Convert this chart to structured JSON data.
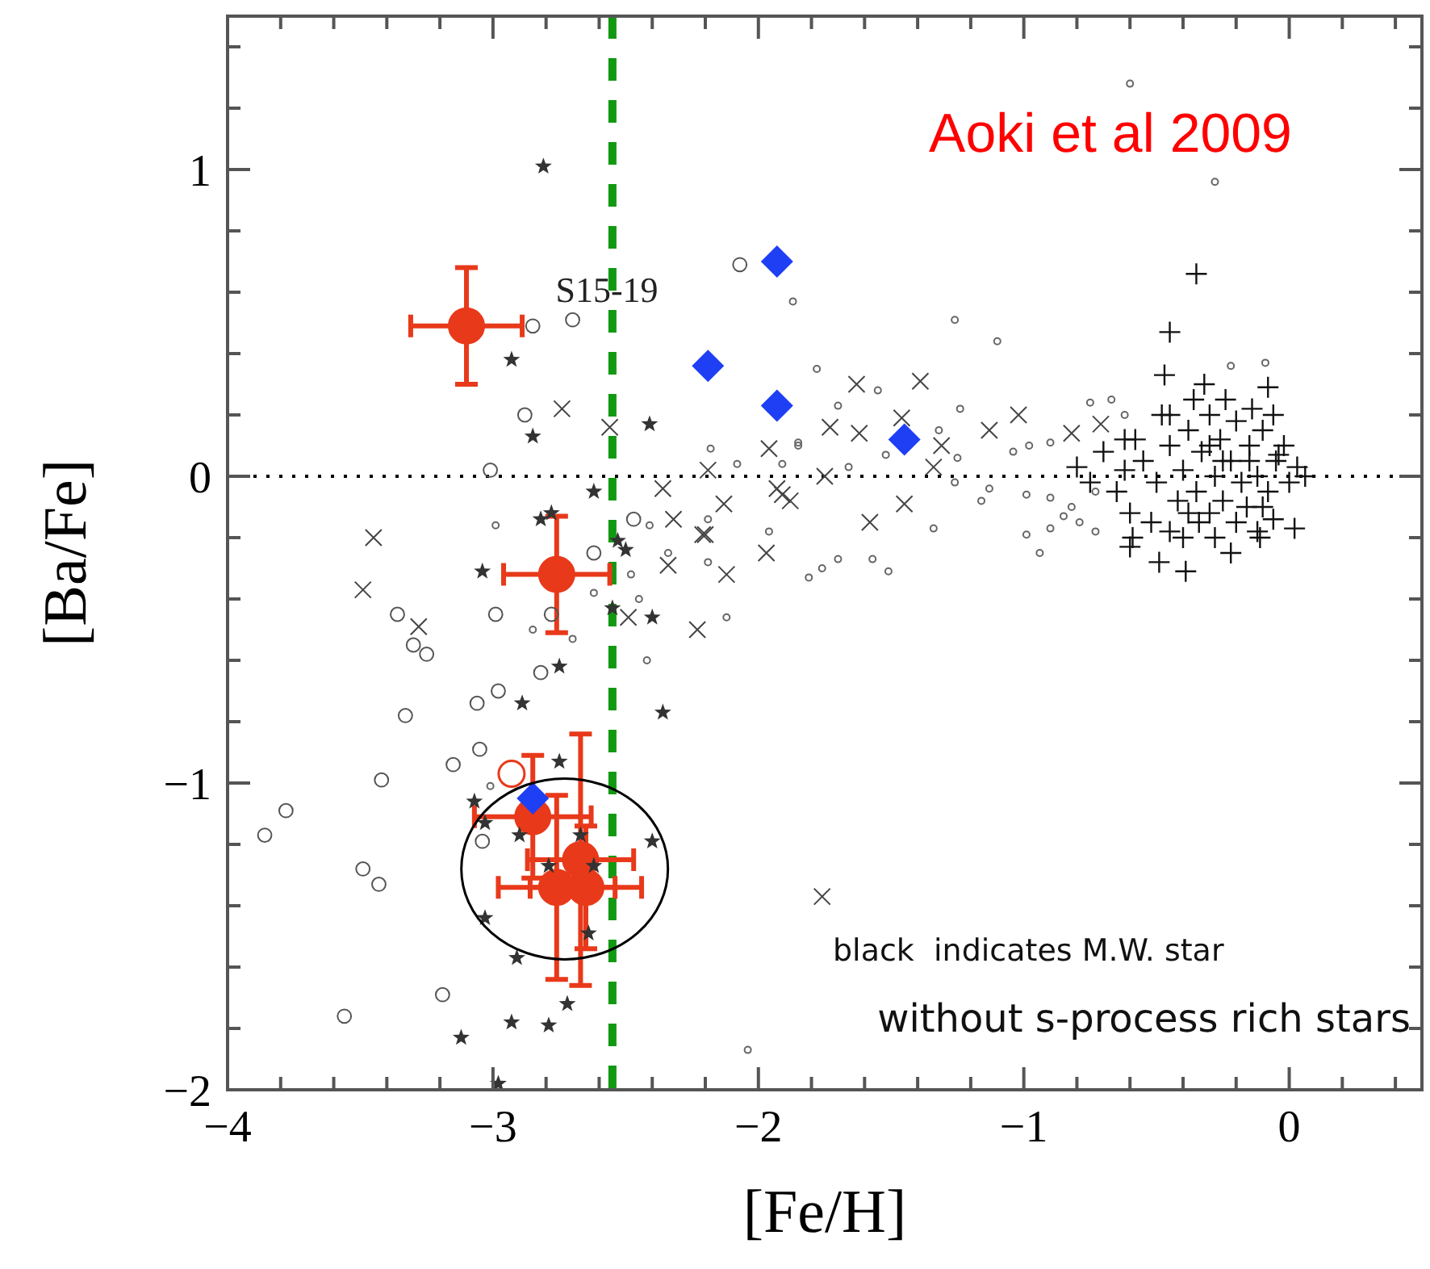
{
  "chart_data": {
    "type": "scatter",
    "xlabel": "[Fe/H]",
    "ylabel": "[Ba/Fe]",
    "xlim": [
      -4,
      0.5
    ],
    "ylim": [
      -2,
      1.5
    ],
    "xticks": [
      {
        "value": -4,
        "label": "−4"
      },
      {
        "value": -3.8,
        "label": null
      },
      {
        "value": -3.6,
        "label": null
      },
      {
        "value": -3.4,
        "label": null
      },
      {
        "value": -3.2,
        "label": null
      },
      {
        "value": -3,
        "label": "−3"
      },
      {
        "value": -2.8,
        "label": null
      },
      {
        "value": -2.6,
        "label": null
      },
      {
        "value": -2.4,
        "label": null
      },
      {
        "value": -2.2,
        "label": null
      },
      {
        "value": -2,
        "label": "−2"
      },
      {
        "value": -1.8,
        "label": null
      },
      {
        "value": -1.6,
        "label": null
      },
      {
        "value": -1.4,
        "label": null
      },
      {
        "value": -1.2,
        "label": null
      },
      {
        "value": -1,
        "label": "−1"
      },
      {
        "value": -0.8,
        "label": null
      },
      {
        "value": -0.6,
        "label": null
      },
      {
        "value": -0.4,
        "label": null
      },
      {
        "value": -0.2,
        "label": null
      },
      {
        "value": 0,
        "label": "0"
      },
      {
        "value": 0.2,
        "label": null
      },
      {
        "value": 0.4,
        "label": null
      }
    ],
    "yticks": [
      {
        "value": -2,
        "label": "−2"
      },
      {
        "value": -1.8,
        "label": null
      },
      {
        "value": -1.6,
        "label": null
      },
      {
        "value": -1.4,
        "label": null
      },
      {
        "value": -1.2,
        "label": null
      },
      {
        "value": -1,
        "label": "−1"
      },
      {
        "value": -0.8,
        "label": null
      },
      {
        "value": -0.6,
        "label": null
      },
      {
        "value": -0.4,
        "label": null
      },
      {
        "value": -0.2,
        "label": null
      },
      {
        "value": 0,
        "label": "0"
      },
      {
        "value": 0.2,
        "label": null
      },
      {
        "value": 0.4,
        "label": null
      },
      {
        "value": 0.6,
        "label": null
      },
      {
        "value": 0.8,
        "label": null
      },
      {
        "value": 1,
        "label": "1"
      },
      {
        "value": 1.2,
        "label": null
      },
      {
        "value": 1.4,
        "label": null
      }
    ],
    "grid": false,
    "ref_lines": [
      {
        "axis": "x",
        "value": -2.55,
        "color": "#119911",
        "line_style": "dashed"
      },
      {
        "axis": "y",
        "value": 0,
        "color": "#000000",
        "line_style": "dotted"
      }
    ],
    "annotations": [
      "Aoki et al 2009",
      "S15-19",
      "black  indicates M.W. star",
      "without s-process rich stars"
    ],
    "series": [
      {
        "color": "#555555",
        "marker": "circle",
        "x": [
          -3.86,
          -3.78,
          -3.42,
          -3.49,
          -3.43,
          -3.56,
          -3.19,
          -3.33,
          -3.36,
          -3.3,
          -3.25,
          -3.06,
          -2.98,
          -2.82,
          -2.99,
          -2.78,
          -2.62,
          -3.15,
          -3.05,
          -3.04,
          -2.85,
          -2.7,
          -2.88,
          -3.01,
          -2.07,
          -2.47
        ],
        "values": [
          -1.17,
          -1.09,
          -0.99,
          -1.28,
          -1.33,
          -1.76,
          -1.69,
          -0.78,
          -0.45,
          -0.55,
          -0.58,
          -0.74,
          -0.7,
          -0.64,
          -0.45,
          -0.45,
          -0.25,
          -0.94,
          -0.89,
          -1.19,
          0.49,
          0.51,
          0.2,
          0.02,
          0.69,
          -0.14
        ]
      },
      {
        "color": "#666666",
        "marker": "circle",
        "x": [
          -0.6,
          -0.28,
          -1.87,
          -1.26,
          -1.1,
          -1.78,
          -0.09,
          -0.22,
          -1.55,
          -1.7,
          -1.24,
          -0.75,
          -0.67,
          -0.62,
          -1.32,
          -1.85,
          -0.9,
          -0.98,
          -1.25,
          -1.04,
          -1.66,
          -1.26,
          -1.13,
          -0.99,
          -0.9,
          -1.16,
          -0.82,
          -0.73,
          -0.85,
          -0.99,
          -0.9,
          -0.79,
          -0.73,
          -1.34,
          -1.52,
          -2.18,
          -1.85,
          -2.08,
          -1.91,
          -1.96,
          -2.19,
          -2.41,
          -2.99,
          -2.85,
          -2.7,
          -2.62,
          -2.48,
          -2.45,
          -2.42,
          -2.12,
          -2.19,
          -1.81,
          -1.76,
          -2.34,
          -2.04,
          -3.01,
          -1.7,
          -1.57,
          -1.51,
          -0.94
        ],
        "values": [
          1.28,
          0.96,
          0.57,
          0.51,
          0.44,
          0.35,
          0.37,
          0.36,
          0.28,
          0.23,
          0.22,
          0.24,
          0.25,
          0.2,
          0.15,
          0.1,
          0.11,
          0.1,
          0.06,
          0.08,
          0.03,
          -0.02,
          -0.04,
          -0.06,
          -0.07,
          -0.08,
          -0.1,
          -0.05,
          -0.13,
          -0.19,
          -0.17,
          -0.15,
          -0.18,
          -0.17,
          0.07,
          0.09,
          0.11,
          0.04,
          0.04,
          -0.18,
          -0.14,
          -0.16,
          -0.16,
          -0.5,
          -0.53,
          -0.38,
          -0.32,
          -0.4,
          -0.6,
          -0.46,
          -0.28,
          -0.33,
          -0.3,
          -0.25,
          -1.87,
          -1.01,
          -0.27,
          -0.27,
          -0.31,
          -0.25
        ]
      },
      {
        "color": "#444444",
        "marker": "x",
        "x": [
          -3.45,
          -2.74,
          -2.56,
          -2.36,
          -2.32,
          -2.19,
          -2.13,
          -1.91,
          -1.96,
          -2.21,
          -3.49,
          -3.28,
          -2.49,
          -2.23,
          -2.12,
          -1.97,
          -2.34,
          -2.2,
          -1.76,
          -1.63,
          -1.39,
          -1.02,
          -1.62,
          -1.73,
          -1.46,
          -1.13,
          -0.82,
          -0.71,
          -1.93,
          -1.88,
          -1.75,
          -1.45,
          -1.58,
          -1.31,
          -1.34
        ],
        "values": [
          -0.2,
          0.22,
          0.16,
          -0.04,
          -0.14,
          0.02,
          -0.09,
          -0.06,
          0.09,
          -0.19,
          -0.37,
          -0.49,
          -0.46,
          -0.5,
          -0.32,
          -0.25,
          -0.29,
          -0.19,
          -1.37,
          0.3,
          0.31,
          0.2,
          0.14,
          0.16,
          0.19,
          0.15,
          0.14,
          0.17,
          -0.04,
          -0.08,
          0,
          -0.09,
          -0.15,
          0.1,
          0.03
        ]
      },
      {
        "color": "#333333",
        "marker": "star",
        "x": [
          -2.81,
          -2.93,
          -2.85,
          -2.41,
          -2.62,
          -2.82,
          -2.78,
          -2.53,
          -3.04,
          -2.55,
          -2.4,
          -2.5,
          -2.75,
          -2.89,
          -2.36,
          -2.75,
          -3.07,
          -3.03,
          -2.9,
          -2.67,
          -2.79,
          -2.62,
          -2.4,
          -3.03,
          -2.64,
          -2.91,
          -2.72,
          -2.93,
          -2.79,
          -3.12,
          -2.98
        ],
        "values": [
          1.01,
          0.38,
          0.13,
          0.17,
          -0.05,
          -0.14,
          -0.12,
          -0.21,
          -0.31,
          -0.43,
          -0.46,
          -0.24,
          -0.62,
          -0.74,
          -0.77,
          -0.93,
          -1.06,
          -1.13,
          -1.17,
          -1.17,
          -1.27,
          -1.27,
          -1.19,
          -1.44,
          -1.49,
          -1.57,
          -1.72,
          -1.78,
          -1.79,
          -1.83,
          -1.98
        ]
      },
      {
        "color": "#111111",
        "marker": "cross",
        "x": [
          -0.35,
          -0.45,
          -0.47,
          -0.32,
          -0.08,
          -0.45,
          -0.62,
          -0.04,
          0.02,
          -0.06,
          -0.12,
          -0.59,
          -0.6,
          -0.49,
          -0.39,
          -0.11,
          -0.55,
          -0.5,
          -0.45,
          -0.42,
          -0.4,
          -0.38,
          -0.35,
          -0.33,
          -0.3,
          -0.3,
          -0.28,
          -0.26,
          -0.25,
          -0.22,
          -0.2,
          -0.2,
          -0.18,
          -0.15,
          -0.12,
          -0.1,
          -0.08,
          -0.05,
          -0.02,
          0,
          0.03,
          0.06,
          -0.65,
          -0.62,
          -0.6,
          -0.58,
          -0.52,
          -0.48,
          -0.45,
          -0.4,
          -0.36,
          -0.34,
          -0.28,
          -0.24,
          -0.22,
          -0.16,
          -0.14,
          -0.1,
          -0.06,
          -0.7,
          -0.75,
          -0.8,
          -0.15,
          -0.3,
          -0.38,
          -0.25
        ],
        "values": [
          0.66,
          0.47,
          0.33,
          0.3,
          0.29,
          0.2,
          0.12,
          0.07,
          -0.17,
          -0.14,
          -0.18,
          -0.2,
          -0.23,
          -0.28,
          -0.31,
          -0.2,
          0.05,
          -0.02,
          0.1,
          -0.08,
          0.02,
          0.15,
          -0.05,
          0.08,
          -0.12,
          0.2,
          0,
          0.12,
          -0.08,
          0.05,
          -0.15,
          0.18,
          -0.02,
          0.1,
          0,
          0.15,
          -0.05,
          0.05,
          0.1,
          -0.02,
          0.03,
          0,
          -0.05,
          0.02,
          -0.12,
          0.12,
          -0.15,
          0.2,
          -0.18,
          -0.2,
          0.25,
          -0.15,
          -0.2,
          0.25,
          -0.25,
          -0.1,
          0.22,
          -0.1,
          0.2,
          0.08,
          -0.02,
          0.03,
          0.05,
          0.1,
          -0.12,
          0.05
        ]
      },
      {
        "color": "#1f3ff5",
        "marker": "diamond",
        "x": [
          -1.93,
          -2.19,
          -1.93,
          -1.45,
          -2.85
        ],
        "values": [
          0.7,
          0.36,
          0.23,
          0.12,
          -1.05
        ]
      },
      {
        "color": "#e8391a",
        "marker": "circle",
        "x": [
          -2.93
        ],
        "values": [
          -0.97
        ]
      },
      {
        "color": "#e8391a",
        "marker": "circle",
        "x": [
          -3.1,
          -2.76,
          -2.85,
          -2.67,
          -2.76,
          -2.65
        ],
        "values": [
          0.49,
          -0.32,
          -1.11,
          -1.25,
          -1.34,
          -1.34
        ],
        "errors": [
          0.19,
          0.19,
          0.2,
          0.41,
          0.3,
          0.2
        ],
        "xerrors": [
          0.21,
          0.2,
          0.22,
          0.2,
          0.22,
          0.21
        ]
      }
    ]
  }
}
